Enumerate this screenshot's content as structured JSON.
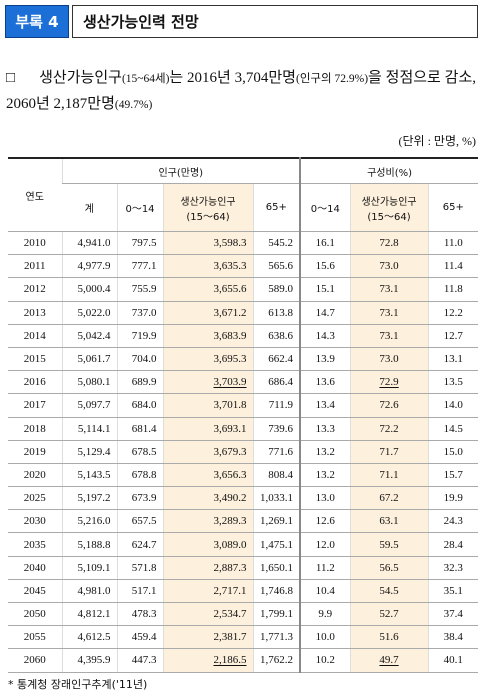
{
  "header": {
    "badge": "부록 4",
    "title": "생산가능인력 전망"
  },
  "paragraph": {
    "bullet": "□",
    "parts": [
      "생산가능인구",
      "(15~64세)",
      "는 2016년 3,704만명",
      "(인구의 72.9%)",
      "을 정점으로 감소, 2060년 2,187만명",
      "(49.7%)"
    ]
  },
  "unit": "(단위 : 만명, %)",
  "table": {
    "header": {
      "year": "연도",
      "group1": "인구(만명)",
      "group2": "구성비(%)",
      "columns1": [
        "계",
        "0～14",
        "생산가능인구\n(15～64)",
        "65+"
      ],
      "columns2": [
        "0～14",
        "생산가능인구\n(15～64)",
        "65+"
      ]
    },
    "rows": [
      [
        "2010",
        "4,941.0",
        "797.5",
        "3,598.3",
        "545.2",
        "16.1",
        "72.8",
        "11.0"
      ],
      [
        "2011",
        "4,977.9",
        "777.1",
        "3,635.3",
        "565.6",
        "15.6",
        "73.0",
        "11.4"
      ],
      [
        "2012",
        "5,000.4",
        "755.9",
        "3,655.6",
        "589.0",
        "15.1",
        "73.1",
        "11.8"
      ],
      [
        "2013",
        "5,022.0",
        "737.0",
        "3,671.2",
        "613.8",
        "14.7",
        "73.1",
        "12.2"
      ],
      [
        "2014",
        "5,042.4",
        "719.9",
        "3,683.9",
        "638.6",
        "14.3",
        "73.1",
        "12.7"
      ],
      [
        "2015",
        "5,061.7",
        "704.0",
        "3,695.3",
        "662.4",
        "13.9",
        "73.0",
        "13.1"
      ],
      [
        "2016",
        "5,080.1",
        "689.9",
        "3,703.9",
        "686.4",
        "13.6",
        "72.9",
        "13.5"
      ],
      [
        "2017",
        "5,097.7",
        "684.0",
        "3,701.8",
        "711.9",
        "13.4",
        "72.6",
        "14.0"
      ],
      [
        "2018",
        "5,114.1",
        "681.4",
        "3,693.1",
        "739.6",
        "13.3",
        "72.2",
        "14.5"
      ],
      [
        "2019",
        "5,129.4",
        "678.5",
        "3,679.3",
        "771.6",
        "13.2",
        "71.7",
        "15.0"
      ],
      [
        "2020",
        "5,143.5",
        "678.8",
        "3,656.3",
        "808.4",
        "13.2",
        "71.1",
        "15.7"
      ],
      [
        "2025",
        "5,197.2",
        "673.9",
        "3,490.2",
        "1,033.1",
        "13.0",
        "67.2",
        "19.9"
      ],
      [
        "2030",
        "5,216.0",
        "657.5",
        "3,289.3",
        "1,269.1",
        "12.6",
        "63.1",
        "24.3"
      ],
      [
        "2035",
        "5,188.8",
        "624.7",
        "3,089.0",
        "1,475.1",
        "12.0",
        "59.5",
        "28.4"
      ],
      [
        "2040",
        "5,109.1",
        "571.8",
        "2,887.3",
        "1,650.1",
        "11.2",
        "56.5",
        "32.3"
      ],
      [
        "2045",
        "4,981.0",
        "517.1",
        "2,717.1",
        "1,746.8",
        "10.4",
        "54.5",
        "35.1"
      ],
      [
        "2050",
        "4,812.1",
        "478.3",
        "2,534.7",
        "1,799.1",
        "9.9",
        "52.7",
        "37.4"
      ],
      [
        "2055",
        "4,612.5",
        "459.4",
        "2,381.7",
        "1,771.3",
        "10.0",
        "51.6",
        "38.4"
      ],
      [
        "2060",
        "4,395.9",
        "447.3",
        "2,186.5",
        "1,762.2",
        "10.2",
        "49.7",
        "40.1"
      ]
    ]
  },
  "footnote": "* 통계청 장래인구추계('11년)"
}
